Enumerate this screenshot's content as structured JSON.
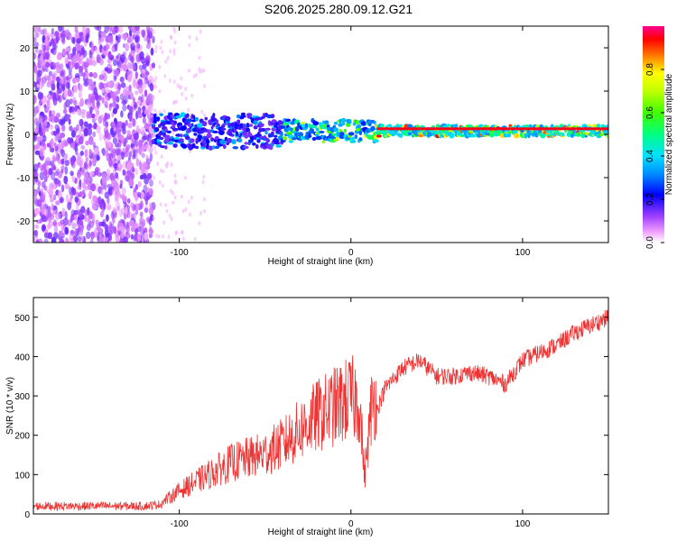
{
  "figure_title": "S206.2025.280.09.12.G21",
  "chart_data": [
    {
      "type": "heatmap",
      "title": "S206.2025.280.09.12.G21",
      "xlabel": "Height of straight line (km)",
      "ylabel": "Frequency (Hz)",
      "xlim": [
        -185,
        150
      ],
      "ylim": [
        -25,
        25
      ],
      "xticks": [
        -100,
        0,
        100
      ],
      "yticks": [
        -20,
        -10,
        0,
        10,
        20
      ],
      "colorbar": {
        "label": "Normalized spectral amplitude",
        "range": [
          0,
          1
        ],
        "ticks": [
          0.0,
          0.2,
          0.4,
          0.6,
          0.8
        ],
        "tick_labels": [
          "0.0",
          "0.2",
          "0.4",
          "0.6",
          "0.8"
        ]
      },
      "features": {
        "noise_floor_end_km": -115,
        "signal_start_km": -115,
        "signal_frequency_hz": 0.8,
        "strong_signal_from_km": 15
      }
    },
    {
      "type": "line",
      "title": "",
      "xlabel": "Height of straight line (km)",
      "ylabel": "SNR (10 * v/v)",
      "xlim": [
        -185,
        150
      ],
      "ylim": [
        0,
        550
      ],
      "xticks": [
        -100,
        0,
        100
      ],
      "yticks": [
        0,
        100,
        200,
        300,
        400,
        500
      ],
      "color": "#ee3333",
      "x": [
        -185,
        -160,
        -140,
        -120,
        -110,
        -100,
        -90,
        -80,
        -70,
        -60,
        -50,
        -40,
        -30,
        -20,
        -10,
        0,
        5,
        8,
        12,
        20,
        30,
        40,
        50,
        60,
        70,
        80,
        90,
        95,
        100,
        110,
        120,
        130,
        140,
        150
      ],
      "values": [
        20,
        20,
        20,
        20,
        25,
        50,
        70,
        90,
        110,
        120,
        130,
        150,
        180,
        210,
        230,
        250,
        240,
        80,
        230,
        320,
        370,
        390,
        350,
        350,
        360,
        350,
        330,
        360,
        390,
        410,
        430,
        460,
        480,
        500
      ]
    }
  ]
}
